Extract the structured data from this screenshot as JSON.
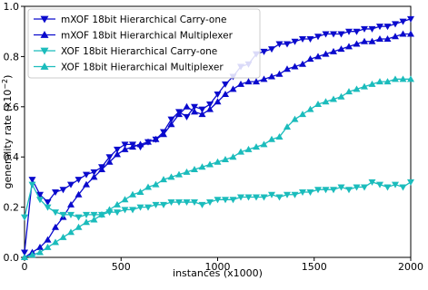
{
  "chart_data": {
    "type": "line",
    "xlabel": "instances (x1000)",
    "ylabel": "generality rate (x10",
    "ylabel_exp": "−2",
    "ylabel_close": ")",
    "xlim": [
      0,
      2000
    ],
    "ylim": [
      0,
      1.0
    ],
    "xticks": [
      0,
      500,
      1000,
      1500,
      2000
    ],
    "yticks": [
      0.0,
      0.2,
      0.4,
      0.6,
      0.8,
      1.0
    ],
    "xtick_labels": [
      "0",
      "500",
      "1000",
      "1500",
      "2000"
    ],
    "ytick_labels": [
      "0.0",
      "0.2",
      "0.4",
      "0.6",
      "0.8",
      "1.0"
    ],
    "legend_position": "upper-left",
    "series": [
      {
        "name": "mXOF 18bit Hierarchical Carry-one",
        "color": "#0a0acd",
        "marker": "triangle-down",
        "x": [
          0,
          40,
          80,
          120,
          160,
          200,
          240,
          280,
          320,
          360,
          400,
          440,
          480,
          520,
          560,
          600,
          640,
          680,
          720,
          760,
          800,
          840,
          880,
          920,
          960,
          1000,
          1040,
          1080,
          1120,
          1160,
          1200,
          1240,
          1280,
          1320,
          1360,
          1400,
          1440,
          1480,
          1520,
          1560,
          1600,
          1640,
          1680,
          1720,
          1760,
          1800,
          1840,
          1880,
          1920,
          1960,
          2000
        ],
        "y": [
          0.02,
          0.31,
          0.25,
          0.22,
          0.26,
          0.27,
          0.29,
          0.31,
          0.33,
          0.34,
          0.36,
          0.4,
          0.43,
          0.45,
          0.45,
          0.44,
          0.46,
          0.47,
          0.5,
          0.55,
          0.58,
          0.56,
          0.6,
          0.59,
          0.61,
          0.65,
          0.69,
          0.72,
          0.76,
          0.77,
          0.81,
          0.82,
          0.83,
          0.85,
          0.85,
          0.86,
          0.87,
          0.87,
          0.88,
          0.89,
          0.89,
          0.89,
          0.9,
          0.9,
          0.91,
          0.91,
          0.92,
          0.92,
          0.93,
          0.94,
          0.95
        ]
      },
      {
        "name": "mXOF 18bit Hierarchical Multiplexer",
        "color": "#0a0acd",
        "marker": "triangle-up",
        "x": [
          0,
          40,
          80,
          120,
          160,
          200,
          240,
          280,
          320,
          360,
          400,
          440,
          480,
          520,
          560,
          600,
          640,
          680,
          720,
          760,
          800,
          840,
          880,
          920,
          960,
          1000,
          1040,
          1080,
          1120,
          1160,
          1200,
          1240,
          1280,
          1320,
          1360,
          1400,
          1440,
          1480,
          1520,
          1560,
          1600,
          1640,
          1680,
          1720,
          1760,
          1800,
          1840,
          1880,
          1920,
          1960,
          2000
        ],
        "y": [
          0.0,
          0.02,
          0.04,
          0.07,
          0.12,
          0.16,
          0.21,
          0.25,
          0.29,
          0.32,
          0.35,
          0.38,
          0.41,
          0.43,
          0.44,
          0.45,
          0.46,
          0.47,
          0.49,
          0.53,
          0.57,
          0.6,
          0.58,
          0.57,
          0.59,
          0.62,
          0.65,
          0.67,
          0.69,
          0.7,
          0.7,
          0.71,
          0.72,
          0.73,
          0.75,
          0.76,
          0.77,
          0.79,
          0.8,
          0.81,
          0.82,
          0.83,
          0.84,
          0.85,
          0.86,
          0.86,
          0.87,
          0.87,
          0.88,
          0.89,
          0.89
        ]
      },
      {
        "name": "XOF 18bit Hierarchical Carry-one",
        "color": "#1bbcbc",
        "marker": "triangle-down",
        "x": [
          0,
          40,
          80,
          120,
          160,
          200,
          240,
          280,
          320,
          360,
          400,
          440,
          480,
          520,
          560,
          600,
          640,
          680,
          720,
          760,
          800,
          840,
          880,
          920,
          960,
          1000,
          1040,
          1080,
          1120,
          1160,
          1200,
          1240,
          1280,
          1320,
          1360,
          1400,
          1440,
          1480,
          1520,
          1560,
          1600,
          1640,
          1680,
          1720,
          1760,
          1800,
          1840,
          1880,
          1920,
          1960,
          2000
        ],
        "y": [
          0.16,
          0.29,
          0.23,
          0.2,
          0.18,
          0.17,
          0.17,
          0.16,
          0.17,
          0.17,
          0.17,
          0.18,
          0.18,
          0.19,
          0.19,
          0.2,
          0.2,
          0.21,
          0.21,
          0.22,
          0.22,
          0.22,
          0.22,
          0.21,
          0.22,
          0.23,
          0.23,
          0.23,
          0.24,
          0.24,
          0.24,
          0.24,
          0.25,
          0.24,
          0.25,
          0.25,
          0.26,
          0.26,
          0.27,
          0.27,
          0.27,
          0.28,
          0.27,
          0.28,
          0.28,
          0.3,
          0.29,
          0.28,
          0.29,
          0.28,
          0.3
        ]
      },
      {
        "name": "XOF 18bit Hierarchical Multiplexer",
        "color": "#1bbcbc",
        "marker": "triangle-up",
        "x": [
          0,
          40,
          80,
          120,
          160,
          200,
          240,
          280,
          320,
          360,
          400,
          440,
          480,
          520,
          560,
          600,
          640,
          680,
          720,
          760,
          800,
          840,
          880,
          920,
          960,
          1000,
          1040,
          1080,
          1120,
          1160,
          1200,
          1240,
          1280,
          1320,
          1360,
          1400,
          1440,
          1480,
          1520,
          1560,
          1600,
          1640,
          1680,
          1720,
          1760,
          1800,
          1840,
          1880,
          1920,
          1960,
          2000
        ],
        "y": [
          0.0,
          0.01,
          0.02,
          0.04,
          0.06,
          0.08,
          0.1,
          0.12,
          0.14,
          0.15,
          0.17,
          0.19,
          0.21,
          0.23,
          0.25,
          0.26,
          0.28,
          0.29,
          0.31,
          0.32,
          0.33,
          0.34,
          0.35,
          0.36,
          0.37,
          0.38,
          0.39,
          0.4,
          0.42,
          0.43,
          0.44,
          0.45,
          0.47,
          0.48,
          0.52,
          0.55,
          0.57,
          0.59,
          0.61,
          0.62,
          0.63,
          0.64,
          0.66,
          0.67,
          0.68,
          0.69,
          0.7,
          0.7,
          0.71,
          0.71,
          0.71
        ]
      }
    ]
  }
}
